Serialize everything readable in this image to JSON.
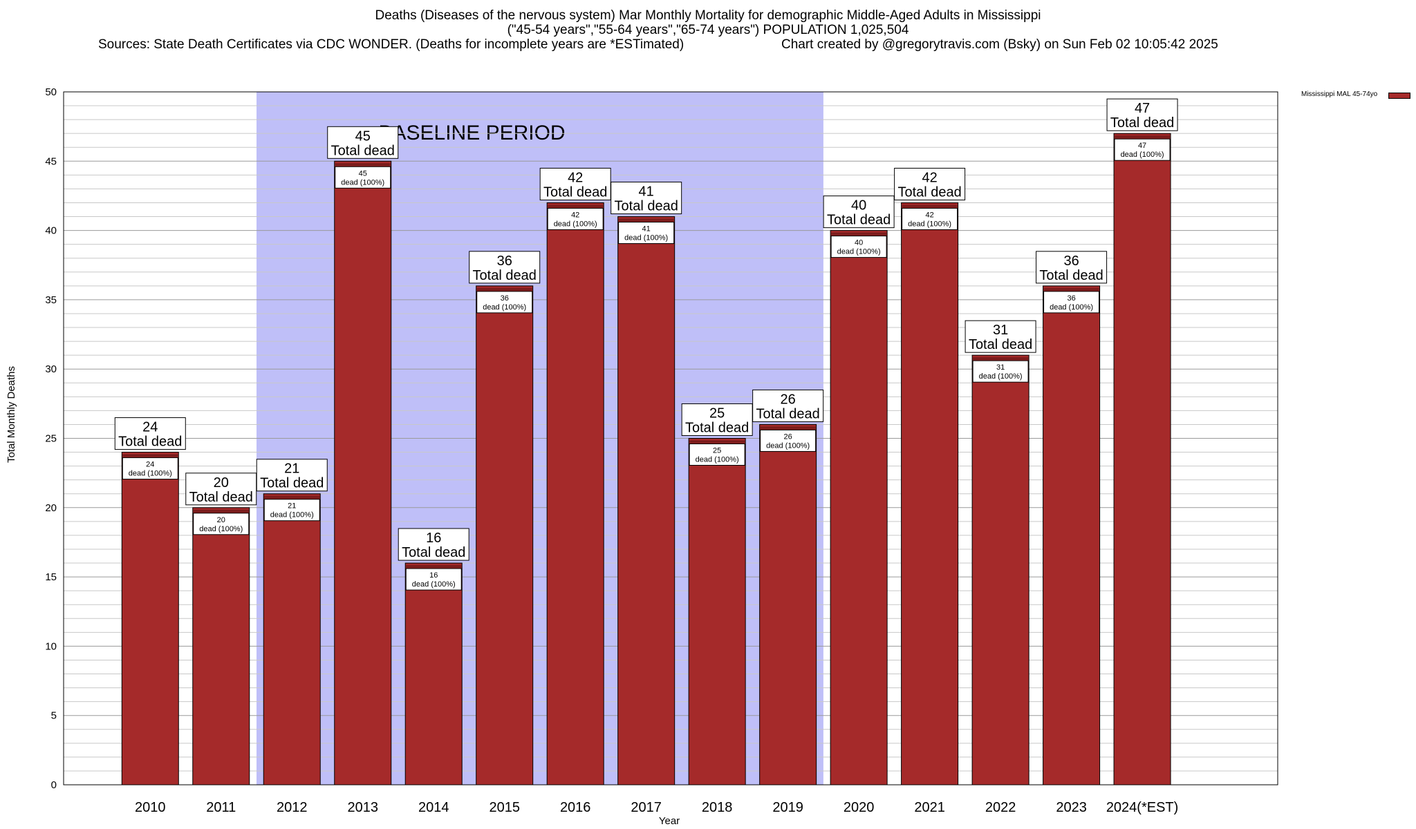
{
  "title": {
    "line1": "Deaths (Diseases of the nervous system) Mar Monthly Mortality for demographic Middle-Aged Adults in Mississippi",
    "line2": "(\"45-54 years\",\"55-64 years\",\"65-74 years\") POPULATION 1,025,504",
    "line3_left": "Sources: State Death Certificates via CDC WONDER. (Deaths for incomplete years are *ESTimated)",
    "line3_right": "Chart created by @gregorytravis.com (Bsky) on Sun Feb 02 10:05:42 2025"
  },
  "legend": {
    "label": "Mississippi MAL 45-74yo",
    "color": "#a52a2a"
  },
  "chart_data": {
    "type": "bar",
    "xlabel": "Year",
    "ylabel": "Total Monthly Deaths",
    "ylim": [
      0,
      50
    ],
    "y_major_ticks": [
      0,
      5,
      10,
      15,
      20,
      25,
      30,
      35,
      40,
      45,
      50
    ],
    "y_minor_step": 1,
    "categories": [
      "2010",
      "2011",
      "2012",
      "2013",
      "2014",
      "2015",
      "2016",
      "2017",
      "2018",
      "2019",
      "2020",
      "2021",
      "2022",
      "2023",
      "2024(*EST)"
    ],
    "series": [
      {
        "name": "Mississippi MAL 45-74yo",
        "color": "#a52a2a",
        "values": [
          24,
          20,
          21,
          45,
          16,
          36,
          42,
          41,
          25,
          26,
          40,
          42,
          31,
          36,
          47
        ]
      }
    ],
    "top_label_suffix": "Total dead",
    "inner_label_suffix": "dead (100%)",
    "baseline_period": {
      "label": "BASELINE PERIOD",
      "from_category": "2012",
      "to_category": "2019",
      "color": "#bfbff8"
    }
  }
}
